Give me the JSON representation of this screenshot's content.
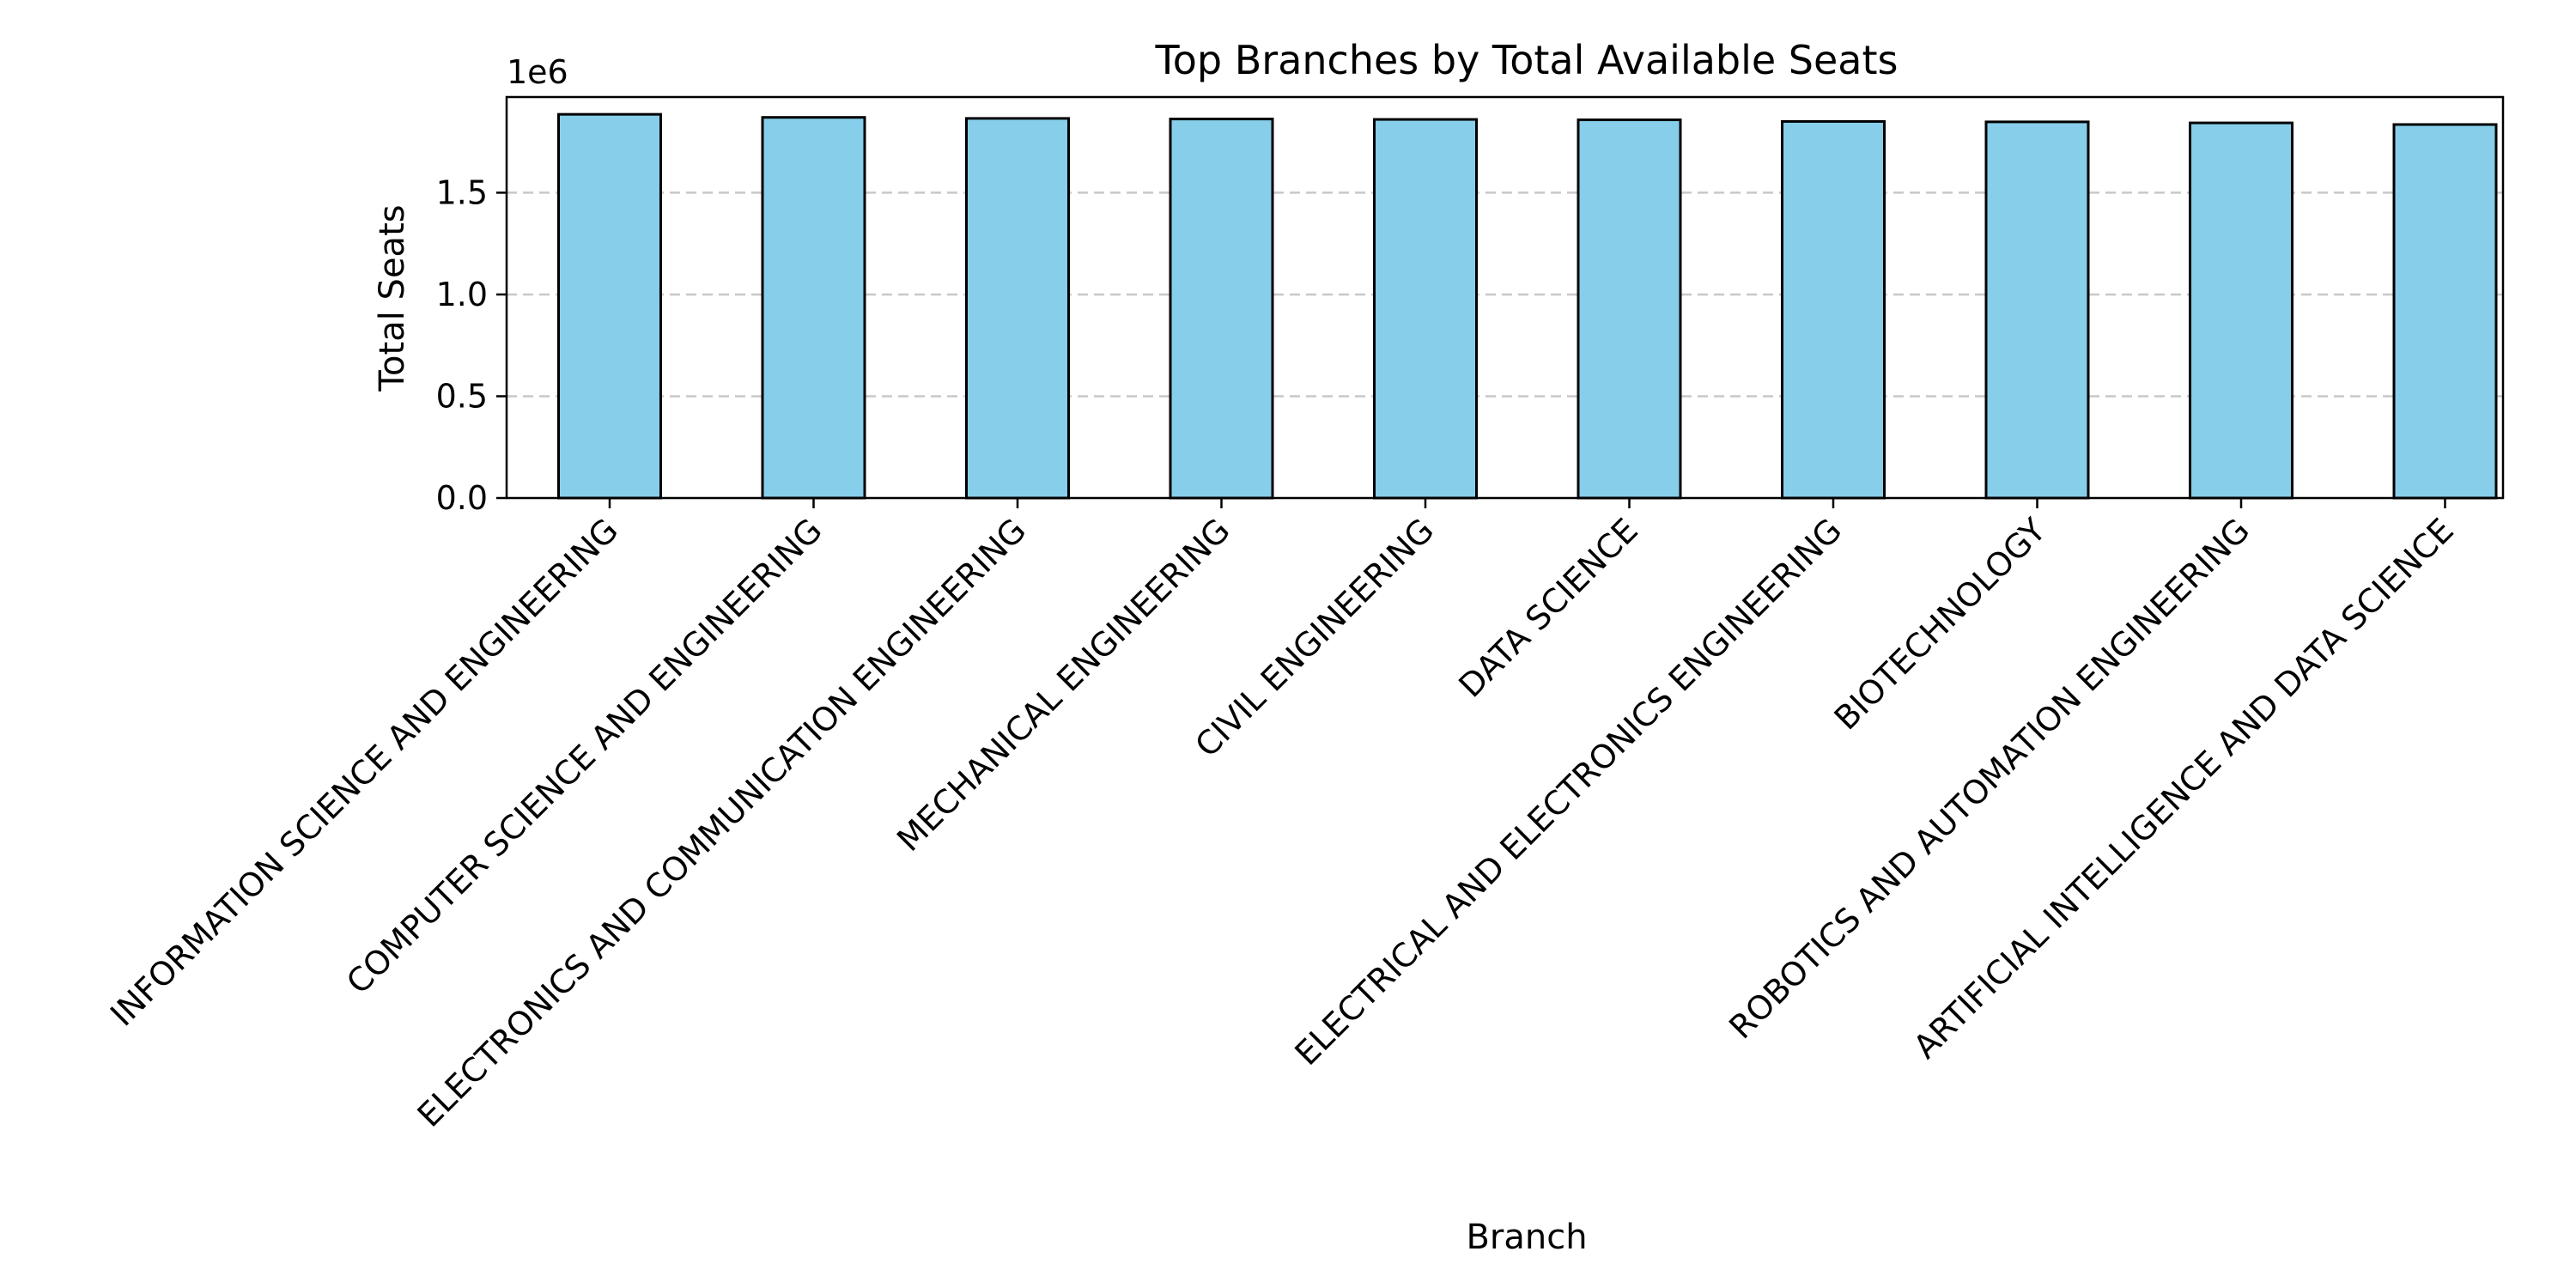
{
  "chart_data": {
    "type": "bar",
    "title": "Top Branches by Total Available Seats",
    "xlabel": "Branch",
    "ylabel": "Total Seats",
    "y_offset_label": "1e6",
    "y_scale": 1000000,
    "ylim": [
      0,
      1970000
    ],
    "yticks": [
      0,
      500000,
      1000000,
      1500000
    ],
    "ytick_labels": [
      "0.0",
      "0.5",
      "1.0",
      "1.5"
    ],
    "grid": "y-dashed",
    "bar_color": "#87ceeb",
    "edge_color": "#000000",
    "categories": [
      "INFORMATION SCIENCE AND ENGINEERING",
      "COMPUTER SCIENCE AND ENGINEERING",
      "ELECTRONICS AND COMMUNICATION ENGINEERING",
      "MECHANICAL ENGINEERING",
      "CIVIL ENGINEERING",
      "DATA SCIENCE",
      "ELECTRICAL AND ELECTRONICS ENGINEERING",
      "BIOTECHNOLOGY",
      "ROBOTICS AND AUTOMATION ENGINEERING",
      "ARTIFICIAL INTELLIGENCE AND DATA SCIENCE"
    ],
    "values": [
      1885000,
      1870000,
      1865000,
      1862000,
      1860000,
      1858000,
      1850000,
      1848000,
      1843000,
      1835000
    ]
  }
}
